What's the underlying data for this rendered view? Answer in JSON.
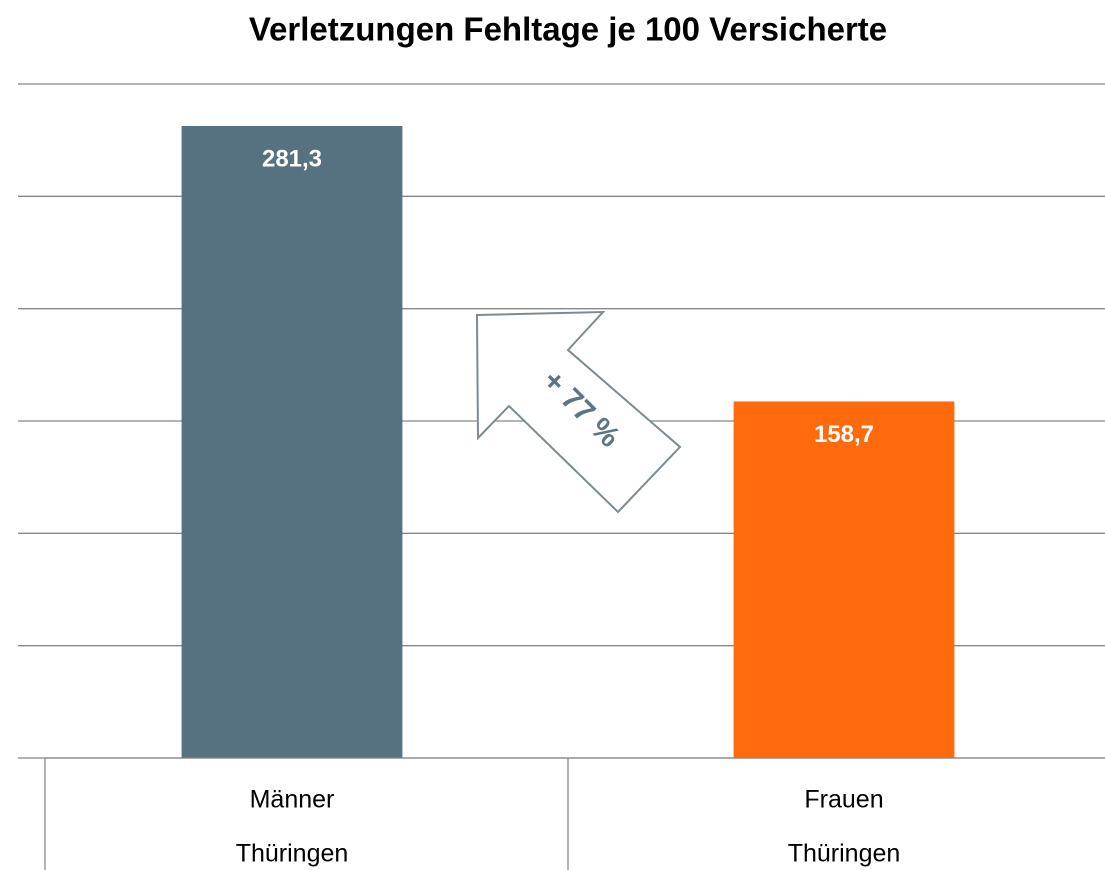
{
  "chart_data": {
    "type": "bar",
    "title": "Verletzungen Fehltage je 100 Versicherte",
    "categories": [
      [
        "Männer",
        "Thüringen"
      ],
      [
        "Frauen",
        "Thüringen"
      ]
    ],
    "values": [
      281.3,
      158.7
    ],
    "value_labels": [
      "281,3",
      "158,7"
    ],
    "colors": [
      "#56717f",
      "#ff6a0c"
    ],
    "ylim": [
      0,
      300
    ],
    "yticks": [
      0,
      50,
      100,
      150,
      200,
      250,
      300
    ],
    "grid": true,
    "annotation": "+ 77 %"
  }
}
